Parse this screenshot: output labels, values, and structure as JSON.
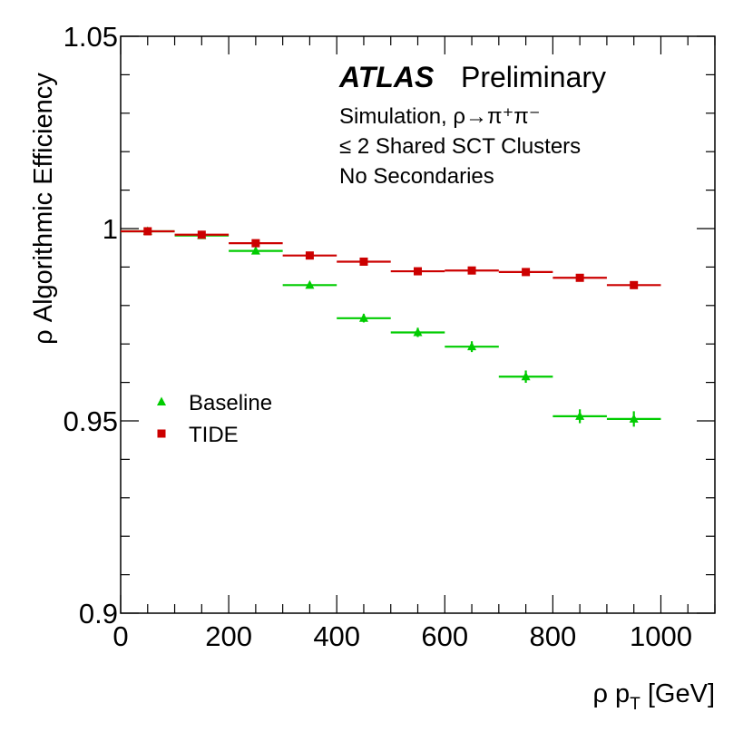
{
  "chart_data": {
    "type": "scatter",
    "experiment": "ATLAS",
    "status": "Preliminary",
    "annotations": [
      "Simulation, ρ→π⁺π⁻",
      "≤ 2 Shared SCT Clusters",
      "No Secondaries"
    ],
    "xlabel": "ρ p_T [GeV]",
    "ylabel": "ρ Algorithmic Efficiency",
    "xlim": [
      0,
      1100
    ],
    "ylim": [
      0.9,
      1.05
    ],
    "xticks": [
      0,
      200,
      400,
      600,
      800,
      1000
    ],
    "xtick_labels": [
      "0",
      "200",
      "400",
      "600",
      "800",
      "1000"
    ],
    "yticks": [
      0.9,
      0.95,
      1.0,
      1.05
    ],
    "ytick_labels": [
      "0.9",
      "0.95",
      "1",
      "1.05"
    ],
    "bin_edges": [
      0,
      100,
      200,
      300,
      400,
      500,
      600,
      700,
      800,
      900,
      1000
    ],
    "legend_position": "center-left",
    "series": [
      {
        "name": "Baseline",
        "marker": "triangle",
        "color": "#00cc00",
        "x": [
          50,
          150,
          250,
          350,
          450,
          550,
          650,
          750,
          850,
          950
        ],
        "y": [
          0.9993,
          0.9982,
          0.9942,
          0.9853,
          0.9767,
          0.973,
          0.9693,
          0.9615,
          0.9512,
          0.9505
        ],
        "yerr": [
          0.0003,
          0.0004,
          0.0006,
          0.0008,
          0.0011,
          0.0012,
          0.0014,
          0.0016,
          0.0018,
          0.002
        ]
      },
      {
        "name": "TIDE",
        "marker": "square",
        "color": "#cc0000",
        "x": [
          50,
          150,
          250,
          350,
          450,
          550,
          650,
          750,
          850,
          950
        ],
        "y": [
          0.9993,
          0.9984,
          0.9962,
          0.993,
          0.9914,
          0.9889,
          0.9891,
          0.9887,
          0.9872,
          0.9853
        ],
        "yerr": [
          0.0002,
          0.0003,
          0.0004,
          0.0005,
          0.0006,
          0.0006,
          0.0007,
          0.0007,
          0.0008,
          0.0009
        ]
      }
    ]
  }
}
